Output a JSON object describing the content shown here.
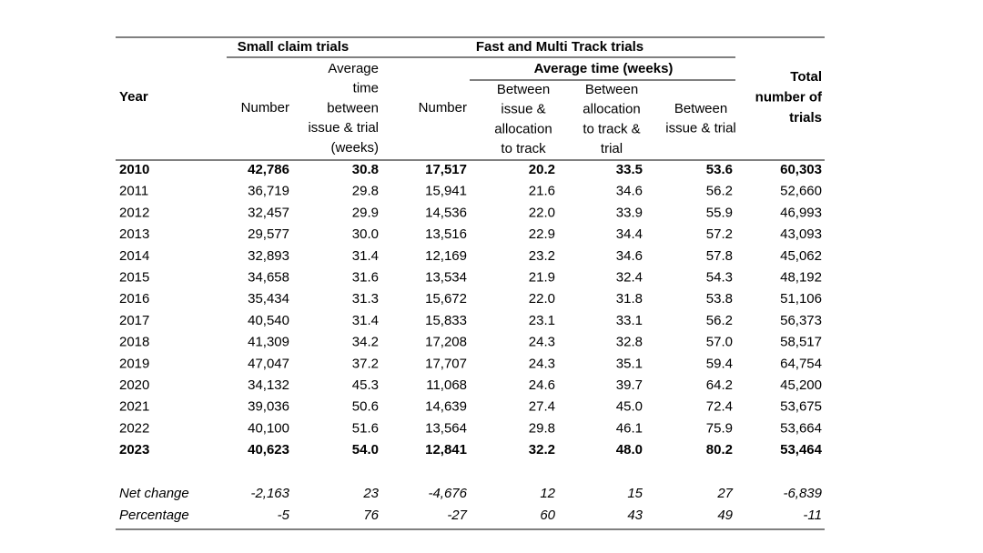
{
  "table": {
    "group_headers": [
      "Small claim trials",
      "Fast and Multi Track trials"
    ],
    "subgroup_header": "Average time (weeks)",
    "year_header": "Year",
    "column_headers": [
      [
        "Number"
      ],
      [
        "Average",
        "time",
        "between",
        "issue & trial",
        "(weeks)"
      ],
      [
        "Number"
      ],
      [
        "Between",
        "issue &",
        "allocation",
        "to track"
      ],
      [
        "Between",
        "allocation",
        "to track &",
        "trial"
      ],
      [
        "Between",
        "issue & trial"
      ],
      [
        "Total",
        "number of",
        "trials"
      ]
    ],
    "rows": [
      [
        "2010",
        "42,786",
        "30.8",
        "17,517",
        "20.2",
        "33.5",
        "53.6",
        "60,303"
      ],
      [
        "2011",
        "36,719",
        "29.8",
        "15,941",
        "21.6",
        "34.6",
        "56.2",
        "52,660"
      ],
      [
        "2012",
        "32,457",
        "29.9",
        "14,536",
        "22.0",
        "33.9",
        "55.9",
        "46,993"
      ],
      [
        "2013",
        "29,577",
        "30.0",
        "13,516",
        "22.9",
        "34.4",
        "57.2",
        "43,093"
      ],
      [
        "2014",
        "32,893",
        "31.4",
        "12,169",
        "23.2",
        "34.6",
        "57.8",
        "45,062"
      ],
      [
        "2015",
        "34,658",
        "31.6",
        "13,534",
        "21.9",
        "32.4",
        "54.3",
        "48,192"
      ],
      [
        "2016",
        "35,434",
        "31.3",
        "15,672",
        "22.0",
        "31.8",
        "53.8",
        "51,106"
      ],
      [
        "2017",
        "40,540",
        "31.4",
        "15,833",
        "23.1",
        "33.1",
        "56.2",
        "56,373"
      ],
      [
        "2018",
        "41,309",
        "34.2",
        "17,208",
        "24.3",
        "32.8",
        "57.0",
        "58,517"
      ],
      [
        "2019",
        "47,047",
        "37.2",
        "17,707",
        "24.3",
        "35.1",
        "59.4",
        "64,754"
      ],
      [
        "2020",
        "34,132",
        "45.3",
        "11,068",
        "24.6",
        "39.7",
        "64.2",
        "45,200"
      ],
      [
        "2021",
        "39,036",
        "50.6",
        "14,639",
        "27.4",
        "45.0",
        "72.4",
        "53,675"
      ],
      [
        "2022",
        "40,100",
        "51.6",
        "13,564",
        "29.8",
        "46.1",
        "75.9",
        "53,664"
      ],
      [
        "2023",
        "40,623",
        "54.0",
        "12,841",
        "32.2",
        "48.0",
        "80.2",
        "53,464"
      ]
    ],
    "summary_rows": [
      [
        "Net change",
        "-2,163",
        "23",
        "-4,676",
        "12",
        "15",
        "27",
        "-6,839"
      ],
      [
        "Percentage",
        "-5",
        "76",
        "-27",
        "60",
        "43",
        "49",
        "-11"
      ]
    ]
  }
}
